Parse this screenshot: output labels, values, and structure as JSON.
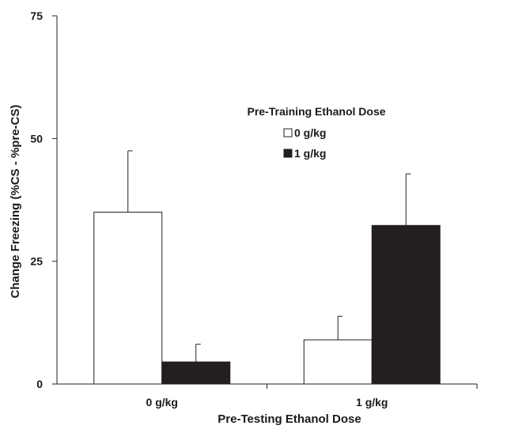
{
  "chart_data": {
    "type": "bar",
    "title": "",
    "xlabel": "Pre-Testing Ethanol Dose",
    "ylabel": "Change Freezing (%CS - %pre-CS)",
    "categories": [
      "0 g/kg",
      "1 g/kg"
    ],
    "ylim": [
      0,
      75
    ],
    "yticks": [
      0,
      25,
      50,
      75
    ],
    "grid": false,
    "legend": {
      "title": "Pre-Training Ethanol Dose",
      "placement": "upper-center"
    },
    "series": [
      {
        "name": "0 g/kg",
        "color": "#ffffff",
        "values": [
          35,
          9
        ],
        "errors": [
          12.5,
          4.8
        ]
      },
      {
        "name": "1 g/kg",
        "color": "#231f20",
        "values": [
          4.5,
          32.3
        ],
        "errors": [
          3.6,
          10.5
        ]
      }
    ]
  }
}
